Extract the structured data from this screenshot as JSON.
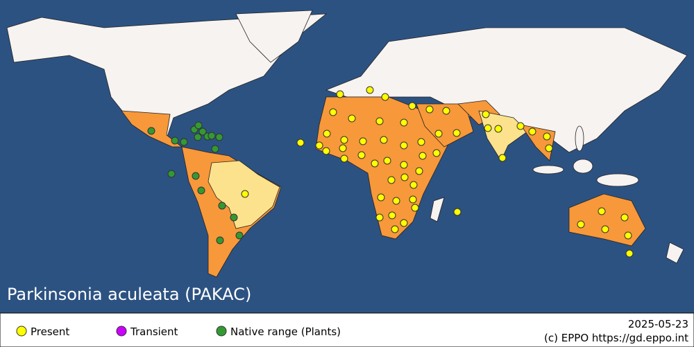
{
  "title": "Parkinsonia aculeata (PAKAC)",
  "legend": [
    "Present",
    "Transient",
    "Native range (Plants)"
  ],
  "date": "2025-05-23",
  "credit": "(c) EPPO https://gd.eppo.int"
}
